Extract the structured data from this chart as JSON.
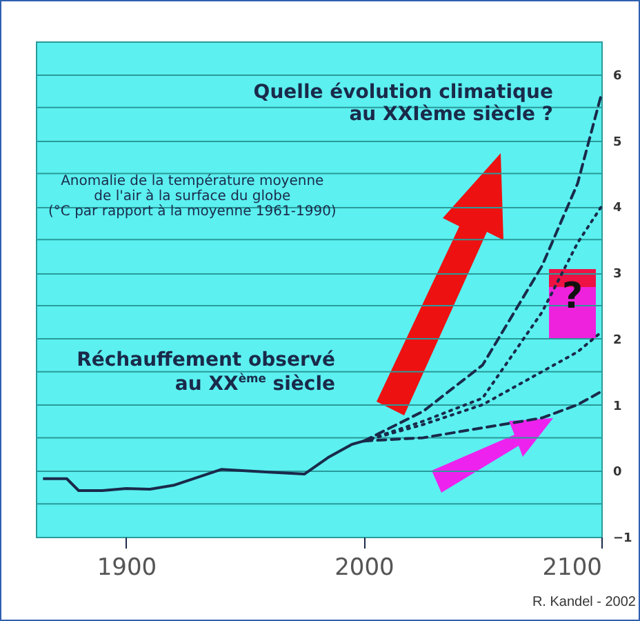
{
  "chart_data": {
    "type": "line",
    "xlim": [
      1862,
      2100
    ],
    "xticks": [
      1900,
      2000,
      2100
    ],
    "ylim": [
      -1,
      6.5
    ],
    "yticks": [
      -1,
      {
        "value": -0.5,
        "label": null
      },
      0,
      {
        "value": 0.5,
        "label": null
      },
      1,
      {
        "value": 1.5,
        "label": null
      },
      2,
      {
        "value": 2.5,
        "label": null
      },
      3,
      {
        "value": 3.5,
        "label": null
      },
      4,
      {
        "value": 4.5,
        "label": null
      },
      5,
      {
        "value": 5.5,
        "label": null
      },
      6
    ],
    "grid": "y",
    "series": [
      {
        "color": "#1a2a4a",
        "line_style": "solid",
        "x": [
          1865,
          1875,
          1880,
          1890,
          1900,
          1910,
          1920,
          1930,
          1940,
          1950,
          1960,
          1975,
          1985,
          1990,
          1995,
          2000
        ],
        "values": [
          -0.12,
          -0.12,
          -0.3,
          -0.3,
          -0.27,
          -0.28,
          -0.22,
          -0.1,
          0.02,
          0.0,
          -0.02,
          -0.05,
          0.2,
          0.3,
          0.4,
          0.45
        ]
      },
      {
        "color": "#1a2a4a",
        "line_style": "dashed",
        "x": [
          2000,
          2025,
          2050,
          2075,
          2090,
          2100
        ],
        "values": [
          0.45,
          0.9,
          1.6,
          3.1,
          4.35,
          5.7
        ]
      },
      {
        "color": "#1a2a4a",
        "line_style": "dotted",
        "x": [
          2000,
          2025,
          2050,
          2075,
          2090,
          2100
        ],
        "values": [
          0.45,
          0.75,
          1.1,
          2.4,
          3.45,
          4.0
        ]
      },
      {
        "color": "#1a2a4a",
        "line_style": "dotted",
        "x": [
          2000,
          2025,
          2050,
          2075,
          2090,
          2100
        ],
        "values": [
          0.45,
          0.7,
          1.0,
          1.5,
          1.8,
          2.1
        ]
      },
      {
        "color": "#1a2a4a",
        "line_style": "dashed",
        "x": [
          2000,
          2025,
          2050,
          2075,
          2090,
          2100
        ],
        "values": [
          0.45,
          0.5,
          0.65,
          0.8,
          1.0,
          1.2
        ]
      }
    ],
    "annotations": [
      "Quelle évolution climatique\nau XXIème siècle ?",
      "Anomalie de la température moyenne\nde l'air à la surface du globe\n(°C par rapport à la moyenne 1961-1990)",
      "Réchauffement observé\nau XX$^{ème}$ siècle",
      "?",
      "R. Kandel - 2002"
    ]
  }
}
